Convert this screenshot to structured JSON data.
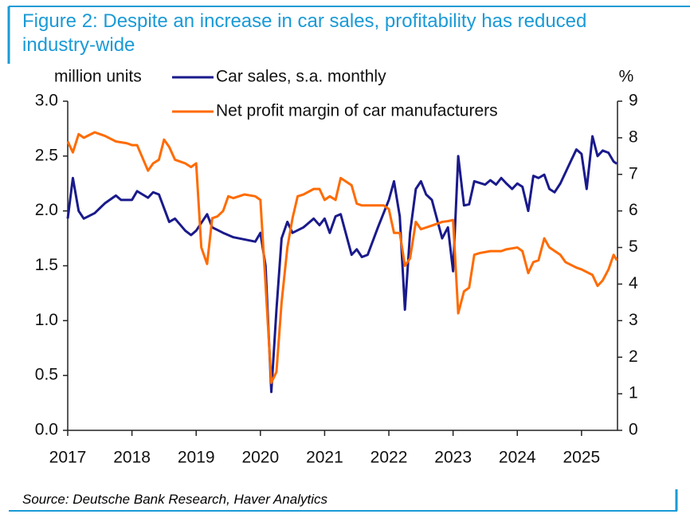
{
  "chart_data": {
    "type": "line",
    "title": "Figure 2: Despite an increase in car sales, profitability has reduced industry-wide",
    "ylabel": "million units",
    "y2label": "%",
    "source": "Source: Deutsche Bank Research, Haver Analytics",
    "xlim": [
      2017,
      2025.56
    ],
    "xticks": [
      2017,
      2018,
      2019,
      2020,
      2021,
      2022,
      2023,
      2024,
      2025
    ],
    "ylim": [
      0,
      3
    ],
    "yticks": [
      {
        "value": 0,
        "label": "0.0"
      },
      0.5,
      {
        "value": 1,
        "label": "1.0"
      },
      1.5,
      {
        "value": 2,
        "label": "2.0"
      },
      2.5,
      {
        "value": 3,
        "label": "3.0"
      }
    ],
    "y2lim": [
      0,
      9
    ],
    "y2ticks": [
      0,
      1,
      2,
      3,
      4,
      5,
      6,
      7,
      8,
      9
    ],
    "series": [
      {
        "name": "Car sales, s.a. monthly",
        "color": "#1a1a8c",
        "x": [
          2017.0,
          2017.08,
          2017.17,
          2017.25,
          2017.42,
          2017.58,
          2017.75,
          2017.83,
          2018.0,
          2018.08,
          2018.25,
          2018.33,
          2018.42,
          2018.58,
          2018.67,
          2018.83,
          2018.92,
          2019.0,
          2019.17,
          2019.25,
          2019.42,
          2019.58,
          2019.75,
          2019.92,
          2020.0,
          2020.08,
          2020.17,
          2020.25,
          2020.33,
          2020.42,
          2020.5,
          2020.67,
          2020.83,
          2020.92,
          2021.0,
          2021.08,
          2021.17,
          2021.25,
          2021.42,
          2021.5,
          2021.58,
          2021.67,
          2021.83,
          2022.0,
          2022.08,
          2022.17,
          2022.25,
          2022.33,
          2022.42,
          2022.5,
          2022.58,
          2022.67,
          2022.83,
          2022.92,
          2023.0,
          2023.08,
          2023.17,
          2023.25,
          2023.33,
          2023.5,
          2023.58,
          2023.67,
          2023.75,
          2023.83,
          2023.92,
          2024.0,
          2024.08,
          2024.17,
          2024.25,
          2024.33,
          2024.42,
          2024.5,
          2024.58,
          2024.67,
          2024.83,
          2024.92,
          2025.0,
          2025.08,
          2025.17,
          2025.25,
          2025.33,
          2025.42,
          2025.5,
          2025.55
        ],
        "values": [
          1.93,
          2.3,
          2.0,
          1.93,
          1.98,
          2.07,
          2.14,
          2.1,
          2.1,
          2.18,
          2.12,
          2.17,
          2.15,
          1.9,
          1.93,
          1.82,
          1.78,
          1.82,
          1.97,
          1.85,
          1.8,
          1.76,
          1.74,
          1.72,
          1.8,
          1.5,
          0.35,
          1.1,
          1.75,
          1.9,
          1.8,
          1.85,
          1.93,
          1.87,
          1.93,
          1.8,
          1.95,
          1.97,
          1.6,
          1.65,
          1.58,
          1.6,
          1.85,
          2.1,
          2.27,
          1.95,
          1.1,
          1.8,
          2.2,
          2.27,
          2.15,
          2.1,
          1.75,
          1.85,
          1.45,
          2.5,
          2.05,
          2.06,
          2.27,
          2.24,
          2.28,
          2.24,
          2.3,
          2.25,
          2.2,
          2.25,
          2.22,
          2.0,
          2.32,
          2.3,
          2.33,
          2.2,
          2.17,
          2.25,
          2.45,
          2.56,
          2.52,
          2.2,
          2.68,
          2.5,
          2.55,
          2.53,
          2.45,
          2.43
        ]
      },
      {
        "name": "Net profit margin of car manufacturers",
        "color": "#ff6b00",
        "axis": "y2",
        "x": [
          2017.0,
          2017.08,
          2017.17,
          2017.25,
          2017.42,
          2017.58,
          2017.75,
          2017.92,
          2018.0,
          2018.08,
          2018.25,
          2018.33,
          2018.42,
          2018.5,
          2018.58,
          2018.67,
          2018.83,
          2018.92,
          2019.0,
          2019.08,
          2019.17,
          2019.25,
          2019.33,
          2019.42,
          2019.5,
          2019.58,
          2019.75,
          2019.92,
          2020.0,
          2020.08,
          2020.17,
          2020.25,
          2020.33,
          2020.42,
          2020.5,
          2020.58,
          2020.67,
          2020.83,
          2020.92,
          2021.0,
          2021.08,
          2021.17,
          2021.25,
          2021.42,
          2021.5,
          2021.58,
          2021.75,
          2021.92,
          2022.0,
          2022.08,
          2022.17,
          2022.25,
          2022.33,
          2022.42,
          2022.5,
          2022.67,
          2022.83,
          2022.92,
          2023.0,
          2023.08,
          2023.17,
          2023.25,
          2023.33,
          2023.42,
          2023.58,
          2023.75,
          2023.83,
          2024.0,
          2024.08,
          2024.17,
          2024.25,
          2024.33,
          2024.42,
          2024.5,
          2024.67,
          2024.75,
          2024.92,
          2025.0,
          2025.17,
          2025.25,
          2025.33,
          2025.42,
          2025.5,
          2025.55
        ],
        "values": [
          7.9,
          7.6,
          8.1,
          8.0,
          8.15,
          8.05,
          7.9,
          7.85,
          7.8,
          7.8,
          7.1,
          7.3,
          7.4,
          7.95,
          7.75,
          7.4,
          7.3,
          7.2,
          7.3,
          5.0,
          4.55,
          5.8,
          5.85,
          6.0,
          6.4,
          6.35,
          6.45,
          6.4,
          6.3,
          4.0,
          1.3,
          1.6,
          3.5,
          5.0,
          5.8,
          6.4,
          6.45,
          6.6,
          6.6,
          6.3,
          6.4,
          6.3,
          6.9,
          6.7,
          6.2,
          6.15,
          6.15,
          6.15,
          6.05,
          5.4,
          5.4,
          4.5,
          4.7,
          5.7,
          5.5,
          5.6,
          5.7,
          5.72,
          5.75,
          3.2,
          3.8,
          3.9,
          4.8,
          4.85,
          4.9,
          4.9,
          4.95,
          5.0,
          4.9,
          4.3,
          4.6,
          4.65,
          5.25,
          5.0,
          4.8,
          4.6,
          4.45,
          4.4,
          4.25,
          3.95,
          4.1,
          4.4,
          4.8,
          4.65
        ]
      }
    ]
  }
}
